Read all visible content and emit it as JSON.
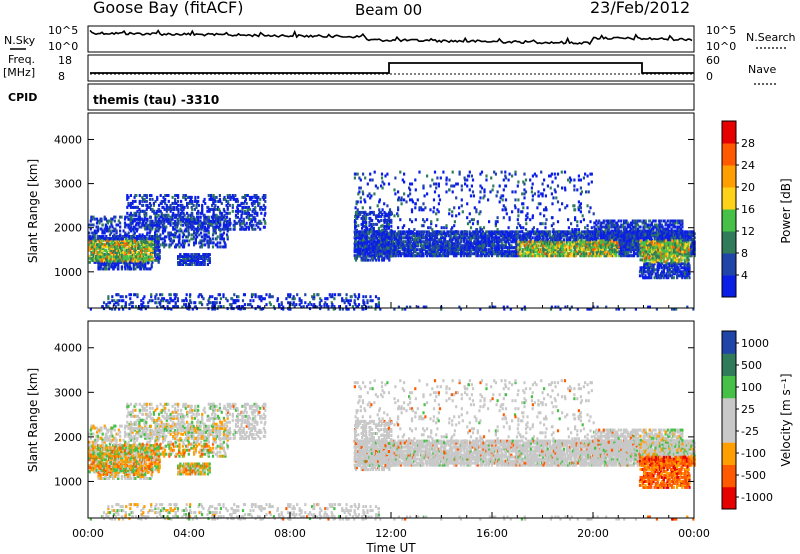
{
  "header": {
    "station": "Goose Bay (fitACF)",
    "beam": "Beam 00",
    "date": "23/Feb/2012",
    "program": "themis (tau) -3310"
  },
  "status_panel": {
    "nsky_label": "N.Sky",
    "nsearch_label": "N.Search",
    "noise_ticks": [
      "10^5",
      "10^0"
    ],
    "freq_label": "Freq.",
    "freq_unit": "[MHz]",
    "freq_ticks": [
      "18",
      "8"
    ],
    "nave_label": "Nave",
    "nave_ticks": [
      "60",
      "0"
    ],
    "cpid_label": "CPID"
  },
  "colors": {
    "power": [
      "#0b1ee6",
      "#2045a8",
      "#2f7b5a",
      "#46c046",
      "#ffd21a",
      "#ff9e00",
      "#ff5a00",
      "#e60000"
    ],
    "velocity": [
      "#e60000",
      "#ff5a00",
      "#ff9e00",
      "#c8c8c8",
      "#c8c8c8",
      "#46c046",
      "#2f7b5a",
      "#2045a8"
    ],
    "ground_scatter": "#c8c8c8"
  },
  "chart_data": [
    {
      "type": "heatmap",
      "id": "power",
      "ylabel": "Slant Range [km]",
      "yticks": [
        1000,
        2000,
        3000,
        4000
      ],
      "ylim": [
        180,
        4600
      ],
      "xlim": [
        0,
        24
      ],
      "colorbar": {
        "label": "Power [dB]",
        "ticks": [
          "4",
          "8",
          "12",
          "16",
          "20",
          "24",
          "28"
        ]
      }
    },
    {
      "type": "heatmap",
      "id": "velocity",
      "ylabel": "Slant Range [km]",
      "yticks": [
        1000,
        2000,
        3000,
        4000
      ],
      "ylim": [
        180,
        4600
      ],
      "xlim": [
        0,
        24
      ],
      "xlabel": "Time UT",
      "xticks": [
        "00:00",
        "04:00",
        "08:00",
        "12:00",
        "16:00",
        "20:00",
        "00:00"
      ],
      "colorbar": {
        "label": "Velocity [m s⁻¹]",
        "ticks": [
          "1000",
          "500",
          "100",
          "25",
          "-25",
          "-100",
          "-500",
          "-1000"
        ]
      }
    }
  ]
}
